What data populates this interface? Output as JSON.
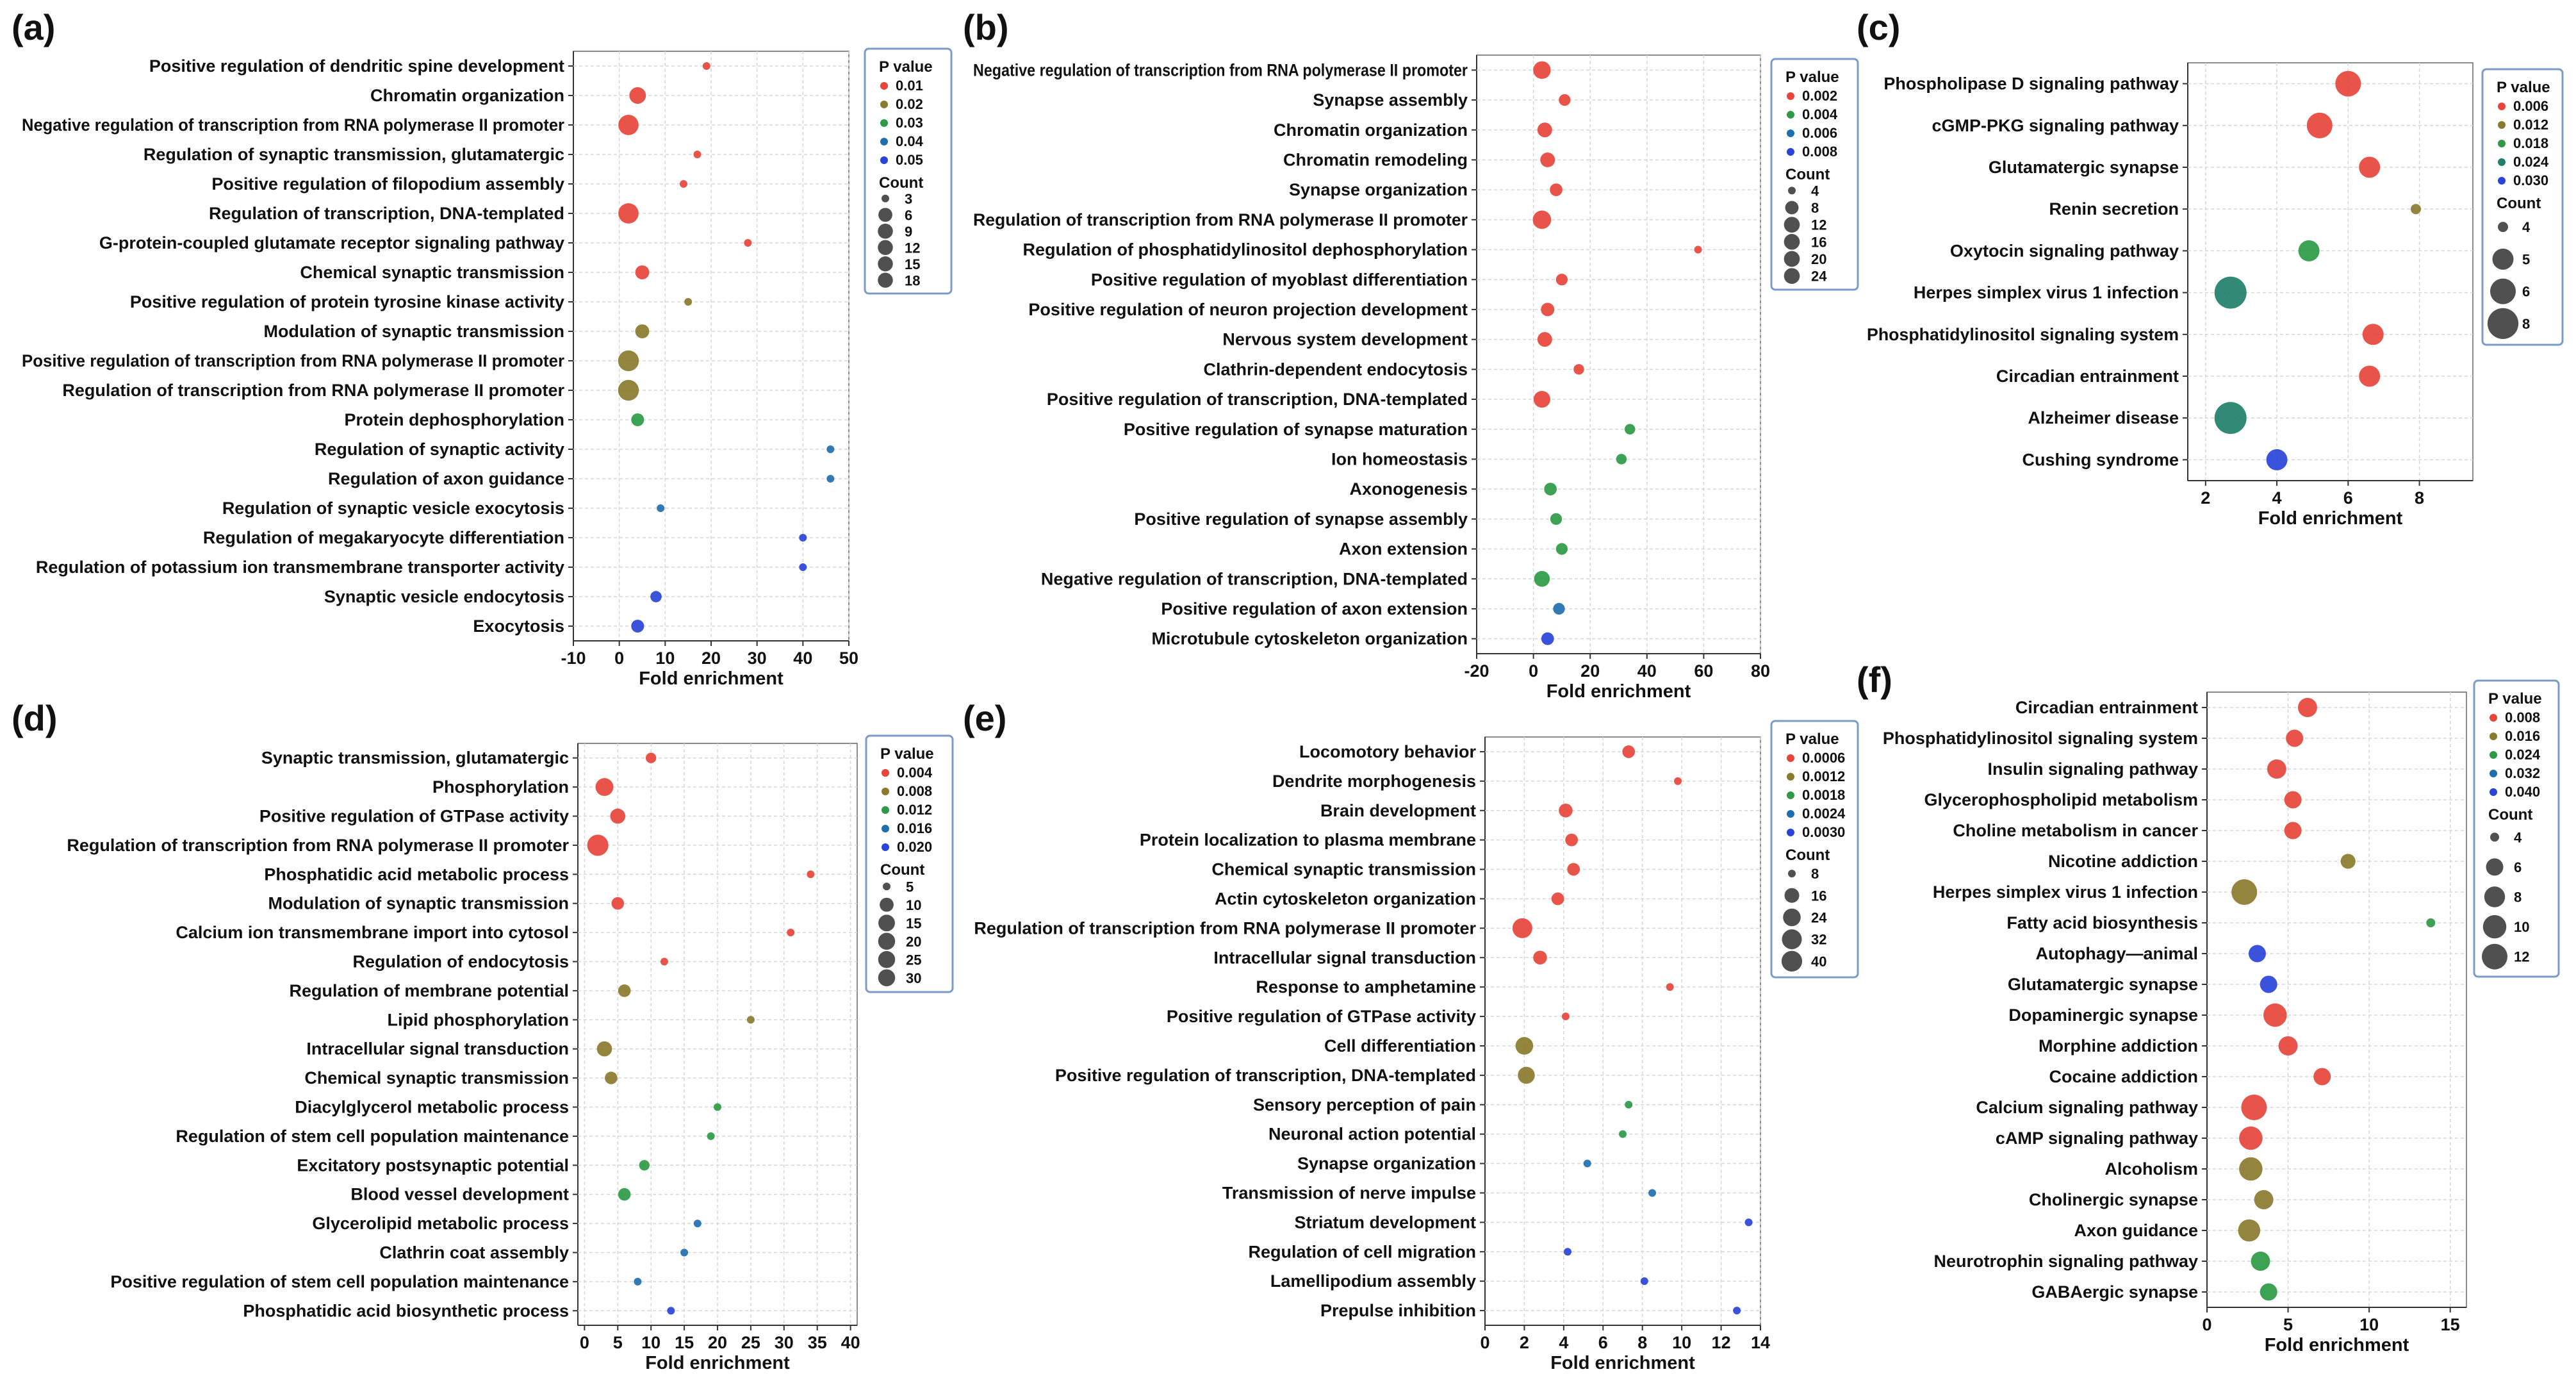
{
  "chart_data": [
    {
      "panel": "(a)",
      "type": "scatter",
      "xlabel": "Fold enrichment",
      "xlim": [
        -10,
        50
      ],
      "xticks": [
        -10,
        0,
        10,
        20,
        30,
        40,
        50
      ],
      "legend": {
        "pvalue_title": "P value",
        "pvalue_labels": [
          "0.01",
          "0.02",
          "0.03",
          "0.04",
          "0.05"
        ],
        "pvalue_colors": [
          "#e6453a",
          "#8a7a2e",
          "#2e9a46",
          "#1f6fb0",
          "#2a43d8"
        ],
        "count_title": "Count",
        "count_labels": [
          "3",
          "6",
          "9",
          "12",
          "15",
          "18"
        ]
      },
      "categories": [
        "Positive regulation of dendritic spine development",
        "Chromatin organization",
        "Negative regulation of transcription from RNA polymerase II promoter",
        "Regulation of synaptic transmission, glutamatergic",
        "Positive regulation of filopodium assembly",
        "Regulation of transcription, DNA-templated",
        "G-protein-coupled glutamate receptor signaling pathway",
        "Chemical synaptic transmission",
        "Positive regulation of protein tyrosine kinase activity",
        "Modulation of synaptic transmission",
        "Positive regulation of transcription from RNA polymerase II promoter",
        "Regulation of transcription from RNA polymerase II promoter",
        "Protein dephosphorylation",
        "Regulation of synaptic activity",
        "Regulation of axon guidance",
        "Regulation of synaptic vesicle exocytosis",
        "Regulation of megakaryocyte differentiation",
        "Regulation of potassium ion transmembrane transporter activity",
        "Synaptic vesicle endocytosis",
        "Exocytosis"
      ],
      "x": [
        19,
        4,
        2,
        17,
        14,
        2,
        28,
        5,
        15,
        5,
        2,
        2,
        4,
        46,
        46,
        9,
        40,
        40,
        8,
        4
      ],
      "pvalue": [
        0.005,
        0.005,
        0.008,
        0.006,
        0.008,
        0.009,
        0.012,
        0.01,
        0.02,
        0.022,
        0.02,
        0.02,
        0.03,
        0.045,
        0.045,
        0.045,
        0.05,
        0.05,
        0.05,
        0.05
      ],
      "count": [
        3,
        9,
        15,
        3,
        3,
        15,
        3,
        6,
        3,
        6,
        16,
        16,
        5,
        3,
        3,
        3,
        3,
        3,
        4,
        5
      ]
    },
    {
      "panel": "(b)",
      "type": "scatter",
      "xlabel": "Fold enrichment",
      "xlim": [
        -20,
        80
      ],
      "xticks": [
        -20,
        0,
        20,
        40,
        60,
        80
      ],
      "legend": {
        "pvalue_title": "P value",
        "pvalue_labels": [
          "0.002",
          "0.004",
          "0.006",
          "0.008"
        ],
        "pvalue_colors": [
          "#e6453a",
          "#2e9a46",
          "#1f6fb0",
          "#2a43d8"
        ],
        "count_title": "Count",
        "count_labels": [
          "4",
          "8",
          "12",
          "16",
          "20",
          "24"
        ]
      },
      "categories": [
        "Negative regulation of transcription from RNA polymerase II promoter",
        "Synapse assembly",
        "Chromatin organization",
        "Chromatin remodeling",
        "Synapse organization",
        "Regulation of transcription from RNA polymerase II promoter",
        "Regulation of phosphatidylinositol dephosphorylation",
        "Positive regulation of myoblast differentiation",
        "Positive regulation of neuron projection development",
        "Nervous system development",
        "Clathrin-dependent endocytosis",
        "Positive regulation of transcription, DNA-templated",
        "Positive regulation of synapse maturation",
        "Ion homeostasis",
        "Axonogenesis",
        "Positive regulation of synapse assembly",
        "Axon extension",
        "Negative regulation of transcription, DNA-templated",
        "Positive regulation of axon extension",
        "Microtubule cytoskeleton organization"
      ],
      "x": [
        3,
        11,
        4,
        5,
        8,
        3,
        58,
        10,
        5,
        4,
        16,
        3,
        34,
        31,
        6,
        8,
        10,
        3,
        9,
        5
      ],
      "pvalue": [
        0.0005,
        0.0008,
        0.0008,
        0.001,
        0.001,
        0.0012,
        0.0012,
        0.0012,
        0.0014,
        0.0016,
        0.0016,
        0.0018,
        0.0035,
        0.004,
        0.004,
        0.0042,
        0.0045,
        0.0045,
        0.007,
        0.008
      ],
      "count": [
        16,
        6,
        10,
        10,
        7,
        18,
        4,
        6,
        8,
        10,
        5,
        14,
        5,
        5,
        7,
        6,
        6,
        12,
        6,
        7
      ]
    },
    {
      "panel": "(c)",
      "type": "scatter",
      "xlabel": "Fold enrichment",
      "xlim": [
        1.5,
        9.5
      ],
      "xticks": [
        2,
        4,
        6,
        8
      ],
      "legend": {
        "pvalue_title": "P value",
        "pvalue_labels": [
          "0.006",
          "0.012",
          "0.018",
          "0.024",
          "0.030"
        ],
        "pvalue_colors": [
          "#e6453a",
          "#8a7a2e",
          "#2e9a46",
          "#1f7f6a",
          "#2a43d8"
        ],
        "count_title": "Count",
        "count_labels": [
          "4",
          "5",
          "6",
          "8"
        ]
      },
      "categories": [
        "Phospholipase D signaling pathway",
        "cGMP-PKG signaling pathway",
        "Glutamatergic synapse",
        "Renin secretion",
        "Oxytocin signaling pathway",
        "Herpes simplex virus 1 infection",
        "Phosphatidylinositol signaling system",
        "Circadian entrainment",
        "Alzheimer disease",
        "Cushing syndrome"
      ],
      "label_colors": [
        "#e01818",
        "#e01818",
        "#e01818",
        "#e01818",
        "#e01818",
        "#e01818",
        "#1a22d8",
        "#1a22d8",
        "#1a22d8",
        "#1a22d8"
      ],
      "x": [
        6.0,
        5.2,
        6.6,
        7.9,
        4.9,
        2.7,
        6.7,
        6.6,
        2.7,
        4.0
      ],
      "pvalue": [
        0.005,
        0.005,
        0.005,
        0.012,
        0.018,
        0.026,
        0.006,
        0.006,
        0.026,
        0.03
      ],
      "count": [
        6,
        6,
        5,
        3,
        5,
        8,
        5,
        5,
        8,
        5
      ]
    },
    {
      "panel": "(d)",
      "type": "scatter",
      "xlabel": "Fold enrichment",
      "xlim": [
        -1,
        41
      ],
      "xticks": [
        0,
        5,
        10,
        15,
        20,
        25,
        30,
        35,
        40
      ],
      "legend": {
        "pvalue_title": "P value",
        "pvalue_labels": [
          "0.004",
          "0.008",
          "0.012",
          "0.016",
          "0.020"
        ],
        "pvalue_colors": [
          "#e6453a",
          "#8a7a2e",
          "#2e9a46",
          "#1f6fb0",
          "#2a43d8"
        ],
        "count_title": "Count",
        "count_labels": [
          "5",
          "10",
          "15",
          "20",
          "25",
          "30"
        ]
      },
      "categories": [
        "Synaptic transmission, glutamatergic",
        "Phosphorylation",
        "Positive regulation of GTPase activity",
        "Regulation of transcription from RNA polymerase II promoter",
        "Phosphatidic acid metabolic process",
        "Modulation of synaptic transmission",
        "Calcium ion transmembrane import into cytosol",
        "Regulation of endocytosis",
        "Regulation of membrane potential",
        "Lipid phosphorylation",
        "Intracellular signal transduction",
        "Chemical synaptic transmission",
        "Diacylglycerol metabolic process",
        "Regulation of stem cell population maintenance",
        "Excitatory postsynaptic potential",
        "Blood vessel development",
        "Glycerolipid metabolic process",
        "Clathrin coat assembly",
        "Positive regulation of stem cell population maintenance",
        "Phosphatidic acid biosynthetic process"
      ],
      "x": [
        10,
        3,
        5,
        2,
        34,
        5,
        31,
        12,
        6,
        25,
        3,
        4,
        20,
        19,
        9,
        6,
        17,
        15,
        8,
        13
      ],
      "pvalue": [
        0.003,
        0.003,
        0.004,
        0.004,
        0.004,
        0.005,
        0.005,
        0.006,
        0.007,
        0.008,
        0.008,
        0.01,
        0.012,
        0.012,
        0.012,
        0.014,
        0.016,
        0.017,
        0.018,
        0.02
      ],
      "count": [
        6,
        18,
        12,
        28,
        4,
        8,
        4,
        5,
        8,
        4,
        12,
        8,
        5,
        5,
        6,
        8,
        5,
        5,
        5,
        5
      ]
    },
    {
      "panel": "(e)",
      "type": "scatter",
      "xlabel": "Fold enrichment",
      "xlim": [
        0,
        14
      ],
      "xticks": [
        0,
        2,
        4,
        6,
        8,
        10,
        12,
        14
      ],
      "legend": {
        "pvalue_title": "P value",
        "pvalue_labels": [
          "0.0006",
          "0.0012",
          "0.0018",
          "0.0024",
          "0.0030"
        ],
        "pvalue_colors": [
          "#e6453a",
          "#8a7a2e",
          "#2e9a46",
          "#1f6fb0",
          "#2a43d8"
        ],
        "count_title": "Count",
        "count_labels": [
          "8",
          "16",
          "24",
          "32",
          "40"
        ]
      },
      "categories": [
        "Locomotory behavior",
        "Dendrite morphogenesis",
        "Brain development",
        "Protein localization to plasma membrane",
        "Chemical synaptic transmission",
        "Actin cytoskeleton organization",
        "Regulation of transcription from RNA polymerase II promoter",
        "Intracellular signal transduction",
        "Response to amphetamine",
        "Positive regulation of GTPase activity",
        "Cell differentiation",
        "Positive regulation of transcription, DNA-templated",
        "Sensory perception of pain",
        "Neuronal action potential",
        "Synapse organization",
        "Transmission of nerve impulse",
        "Striatum development",
        "Regulation of cell migration",
        "Lamellipodium assembly",
        "Prepulse inhibition"
      ],
      "x": [
        7.3,
        9.8,
        4.1,
        4.4,
        4.5,
        3.7,
        1.9,
        2.8,
        9.4,
        4.1,
        2.0,
        2.1,
        7.3,
        7.0,
        5.2,
        8.5,
        13.4,
        4.2,
        8.1,
        12.8
      ],
      "pvalue": [
        0.0004,
        0.0004,
        0.0005,
        0.0005,
        0.0005,
        0.0005,
        0.0006,
        0.0006,
        0.0006,
        0.0008,
        0.0009,
        0.0012,
        0.0016,
        0.0016,
        0.0022,
        0.0025,
        0.0027,
        0.0028,
        0.003,
        0.003
      ],
      "count": [
        12,
        6,
        14,
        12,
        12,
        12,
        32,
        14,
        5,
        8,
        24,
        22,
        6,
        6,
        8,
        5,
        4,
        5,
        5,
        4
      ]
    },
    {
      "panel": "(f)",
      "type": "scatter",
      "xlabel": "Fold enrichment",
      "xlim": [
        0,
        16
      ],
      "xticks": [
        0,
        5,
        10,
        15
      ],
      "legend": {
        "pvalue_title": "P value",
        "pvalue_labels": [
          "0.008",
          "0.016",
          "0.024",
          "0.032",
          "0.040"
        ],
        "pvalue_colors": [
          "#e6453a",
          "#8a7a2e",
          "#2e9a46",
          "#1f6fb0",
          "#2a43d8"
        ],
        "count_title": "Count",
        "count_labels": [
          "4",
          "6",
          "8",
          "10",
          "12"
        ]
      },
      "categories": [
        "Circadian entrainment",
        "Phosphatidylinositol signaling system",
        "Insulin signaling pathway",
        "Glycerophospholipid metabolism",
        "Choline metabolism in cancer",
        "Nicotine addiction",
        "Herpes simplex virus 1 infection",
        "Fatty acid biosynthesis",
        "Autophagy—animal",
        "Glutamatergic synapse",
        "Dopaminergic synapse",
        "Morphine addiction",
        "Cocaine addiction",
        "Calcium signaling pathway",
        "cAMP signaling pathway",
        "Alcoholism",
        "Cholinergic synapse",
        "Axon guidance",
        "Neurotrophin signaling pathway",
        "GABAergic synapse"
      ],
      "label_colors": [
        "#e01818",
        "#e01818",
        "#e01818",
        "#e01818",
        "#e01818",
        "#e01818",
        "#e01818",
        "#e01818",
        "#e01818",
        "#e01818",
        "#1a22d8",
        "#1a22d8",
        "#1a22d8",
        "#1a22d8",
        "#1a22d8",
        "#1a22d8",
        "#1a22d8",
        "#1a22d8",
        "#1a22d8",
        "#1a22d8"
      ],
      "x": [
        6.2,
        5.4,
        4.3,
        5.3,
        5.3,
        8.7,
        2.3,
        13.8,
        3.1,
        3.8,
        4.2,
        5.0,
        7.1,
        2.9,
        2.7,
        2.7,
        3.5,
        2.6,
        3.3,
        3.8
      ],
      "pvalue": [
        0.006,
        0.008,
        0.01,
        0.012,
        0.012,
        0.016,
        0.02,
        0.024,
        0.038,
        0.04,
        0.009,
        0.009,
        0.009,
        0.01,
        0.012,
        0.014,
        0.016,
        0.016,
        0.024,
        0.026
      ],
      "count": [
        7,
        6,
        7,
        6,
        6,
        5,
        12,
        4,
        6,
        6,
        10,
        7,
        6,
        12,
        10,
        10,
        7,
        9,
        7,
        6
      ]
    }
  ]
}
